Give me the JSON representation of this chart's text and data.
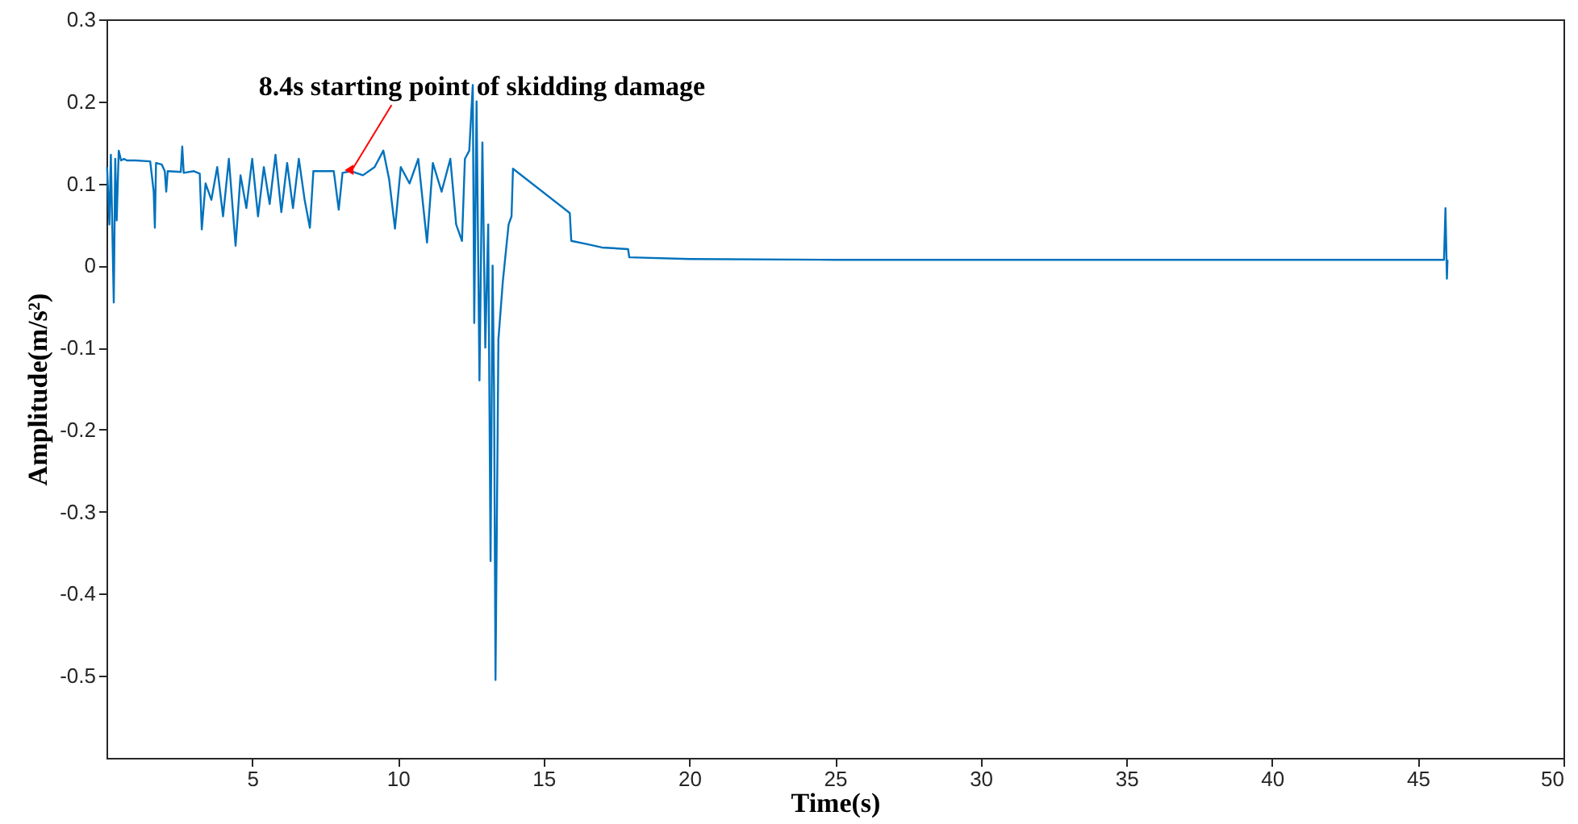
{
  "chart_data": {
    "type": "line",
    "xlabel": "Time(s)",
    "ylabel": "Amplitude(m/s²)",
    "x": [
      0.02,
      0.1,
      0.15,
      0.25,
      0.3,
      0.35,
      0.42,
      0.5,
      0.6,
      0.7,
      1.0,
      1.5,
      1.62,
      1.66,
      1.7,
      1.9,
      2.0,
      2.05,
      2.1,
      2.55,
      2.6,
      2.65,
      3.0,
      3.2,
      3.27,
      3.4,
      3.6,
      3.8,
      4.0,
      4.2,
      4.43,
      4.6,
      4.8,
      5.0,
      5.2,
      5.4,
      5.6,
      5.8,
      6.0,
      6.2,
      6.4,
      6.6,
      6.8,
      6.98,
      7.1,
      7.3,
      7.8,
      7.97,
      8.1,
      8.4,
      8.8,
      9.2,
      9.5,
      9.7,
      9.9,
      10.1,
      10.4,
      10.7,
      11.0,
      11.2,
      11.5,
      11.8,
      12.0,
      12.2,
      12.3,
      12.45,
      12.57,
      12.62,
      12.7,
      12.8,
      12.9,
      13.0,
      13.1,
      13.18,
      13.25,
      13.3,
      13.35,
      13.45,
      13.6,
      13.8,
      13.9,
      13.95,
      15.9,
      15.95,
      16.5,
      17.0,
      17.9,
      17.94,
      20.0,
      25.0,
      30.0,
      35.0,
      40.0,
      45.9,
      45.95,
      46.0,
      46.02
    ],
    "values": [
      0.12,
      0.05,
      0.135,
      -0.045,
      0.13,
      0.055,
      0.14,
      0.128,
      0.13,
      0.128,
      0.128,
      0.127,
      0.09,
      0.046,
      0.125,
      0.123,
      0.115,
      0.09,
      0.115,
      0.114,
      0.145,
      0.113,
      0.115,
      0.112,
      0.044,
      0.1,
      0.08,
      0.12,
      0.06,
      0.13,
      0.024,
      0.11,
      0.07,
      0.13,
      0.06,
      0.12,
      0.075,
      0.135,
      0.065,
      0.125,
      0.07,
      0.13,
      0.08,
      0.046,
      0.115,
      0.115,
      0.115,
      0.068,
      0.113,
      0.115,
      0.11,
      0.12,
      0.14,
      0.105,
      0.045,
      0.12,
      0.1,
      0.13,
      0.028,
      0.125,
      0.09,
      0.13,
      0.05,
      0.03,
      0.13,
      0.14,
      0.22,
      -0.07,
      0.2,
      -0.14,
      0.15,
      -0.1,
      0.05,
      -0.36,
      0.0,
      -0.15,
      -0.505,
      -0.09,
      -0.02,
      0.05,
      0.06,
      0.118,
      0.064,
      0.03,
      0.026,
      0.022,
      0.02,
      0.01,
      0.008,
      0.007,
      0.007,
      0.007,
      0.007,
      0.007,
      0.07,
      -0.016,
      0.007
    ],
    "color": "#0072bd",
    "xlim": [
      0,
      50
    ],
    "xticks": [
      5,
      10,
      15,
      20,
      25,
      30,
      35,
      40,
      45,
      50
    ],
    "ylim": [
      -0.6,
      0.3
    ],
    "yticks": [
      -0.5,
      -0.4,
      -0.3,
      -0.2,
      -0.1,
      0,
      0.1,
      0.2,
      0.3
    ],
    "grid": false,
    "annotations": [
      {
        "text": "8.4s starting point of skidding damage",
        "x": 8.4,
        "y": 0.115
      }
    ]
  }
}
